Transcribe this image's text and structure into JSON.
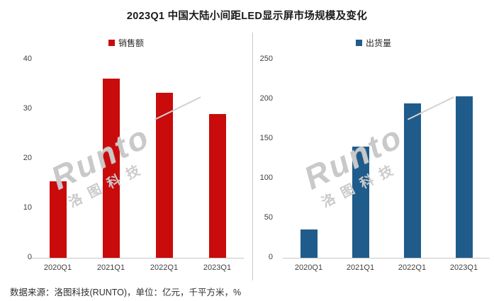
{
  "title": "2023Q1 中国大陆小间距LED显示屏市场规模及变化",
  "footer": "数据来源：洛图科技(RUNTO)，单位：亿元，千平方米，%",
  "watermark": {
    "brand": "Runto",
    "cn": "洛图科技"
  },
  "colors": {
    "sales_red": "#C90B0B",
    "shipment_blue": "#1F5C8B",
    "axis_line": "#C6C6C6",
    "tick_text": "#3F3F3F",
    "watermark_gray": "#CBCBCB"
  },
  "chart_data": [
    {
      "type": "bar",
      "name": "sales-revenue",
      "legend": "销售额",
      "legend_position": "top",
      "bar_color": "#C90B0B",
      "categories": [
        "2020Q1",
        "2021Q1",
        "2022Q1",
        "2023Q1"
      ],
      "values": [
        15.5,
        36.2,
        33.3,
        29.0
      ],
      "ylim": [
        0,
        40
      ],
      "yticks": [
        0,
        10,
        20,
        30,
        40
      ],
      "grid": false,
      "xlabel": "",
      "ylabel": ""
    },
    {
      "type": "bar",
      "name": "shipment-volume",
      "legend": "出货量",
      "legend_position": "top",
      "bar_color": "#1F5C8B",
      "categories": [
        "2020Q1",
        "2021Q1",
        "2022Q1",
        "2023Q1"
      ],
      "values": [
        36,
        140,
        195,
        204
      ],
      "ylim": [
        0,
        250
      ],
      "yticks": [
        0,
        50,
        100,
        150,
        200,
        250
      ],
      "grid": false,
      "xlabel": "",
      "ylabel": ""
    }
  ]
}
